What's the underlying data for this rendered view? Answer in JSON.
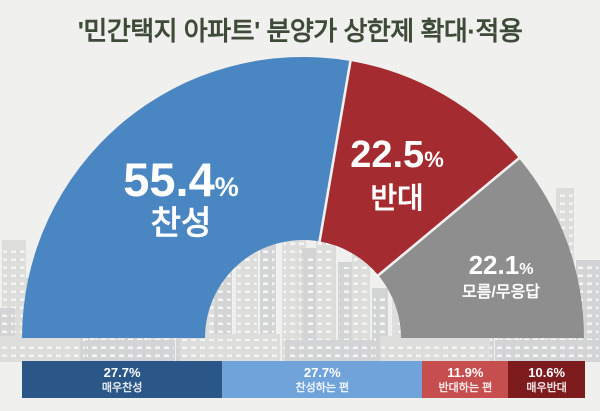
{
  "title": "'민간택지 아파트' 분양가 상한제 확대·적용",
  "unit": "%",
  "colors": {
    "background": "#F0F0EE",
    "title_text": "#3F4B39",
    "separator": "#F0F0EE",
    "building_light": "#DDDDDC",
    "building_dark": "#D2D4D6",
    "building_window": "#F5F5F3"
  },
  "chart_data": [
    {
      "type": "pie",
      "subtype": "half_donut",
      "title": "'민간택지 아파트' 분양가 상한제 확대·적용",
      "unit": "%",
      "legend_position": "none",
      "segments": [
        {
          "key": "agree",
          "label": "찬성",
          "value": 55.4,
          "color": "#4A86C1"
        },
        {
          "key": "oppose",
          "label": "반대",
          "value": 22.5,
          "color": "#A42B2F"
        },
        {
          "key": "unknown",
          "label": "모름/무응답",
          "value": 22.1,
          "color": "#8E8E8F"
        }
      ]
    },
    {
      "type": "bar",
      "subtype": "horizontal_stacked",
      "unit": "%",
      "segments": [
        {
          "key": "strongly-agree",
          "label": "매우찬성",
          "value": 27.7,
          "color": "#2A5787"
        },
        {
          "key": "somewhat-agree",
          "label": "찬성하는 편",
          "value": 27.7,
          "color": "#6FA3D9"
        },
        {
          "key": "somewhat-oppose",
          "label": "반대하는 편",
          "value": 11.9,
          "color": "#C64E4E"
        },
        {
          "key": "strongly-oppose",
          "label": "매우반대",
          "value": 10.6,
          "color": "#7E1B1D"
        }
      ]
    }
  ]
}
